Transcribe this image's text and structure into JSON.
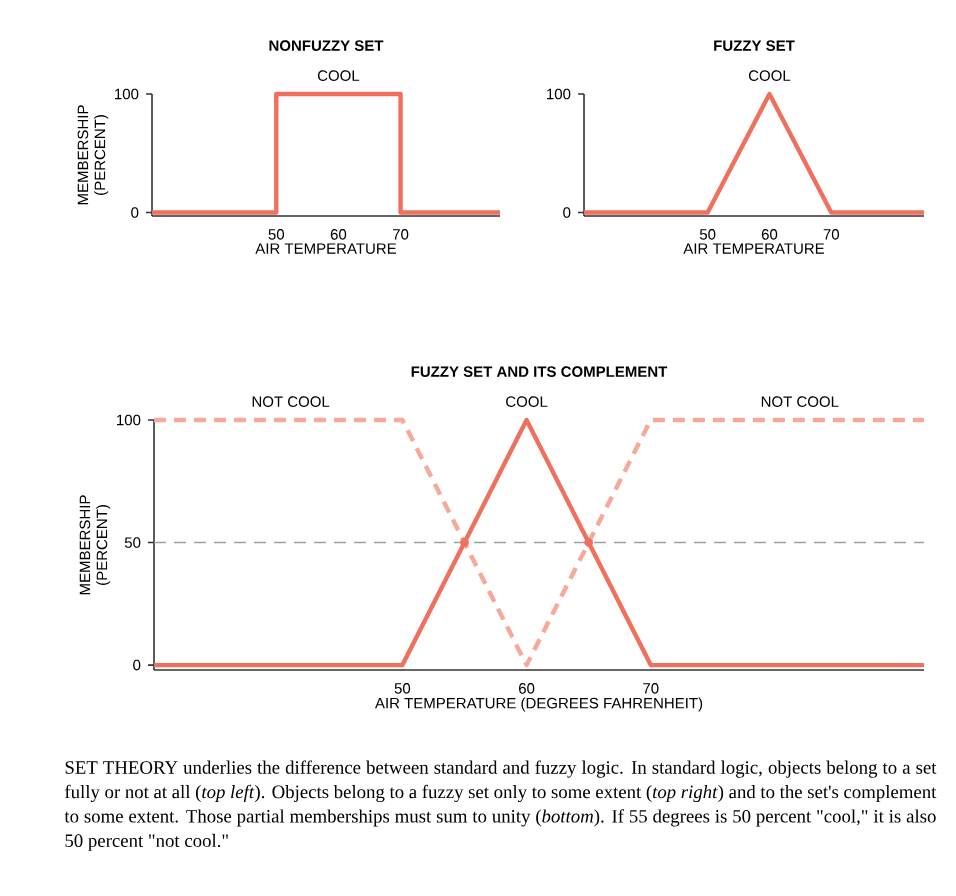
{
  "chart_data": [
    {
      "type": "line",
      "title": "NONFUZZY SET",
      "xlabel": "AIR TEMPERATURE",
      "ylabel": "MEMBERSHIP (PERCENT)",
      "xlim": [
        30,
        86
      ],
      "ylim": [
        -3,
        100
      ],
      "xticks": [
        50,
        60,
        70
      ],
      "yticks": [
        0,
        100
      ],
      "grid": false,
      "marker": "none",
      "series": [
        {
          "color": "#f07060",
          "x": [
            30,
            50,
            50,
            70,
            70,
            86
          ],
          "values": [
            0,
            0,
            100,
            100,
            0,
            0
          ]
        }
      ],
      "annotations": [
        {
          "text": "COOL",
          "x": 60,
          "y": 100
        }
      ]
    },
    {
      "type": "line",
      "title": "FUZZY SET",
      "xlabel": "AIR TEMPERATURE",
      "xlim": [
        30,
        85
      ],
      "ylim": [
        -3,
        100
      ],
      "xticks": [
        50,
        60,
        70
      ],
      "yticks": [
        0,
        100
      ],
      "grid": false,
      "marker": "none",
      "series": [
        {
          "color": "#f07060",
          "x": [
            30,
            50,
            60,
            70,
            85
          ],
          "values": [
            0,
            0,
            100,
            0,
            0
          ]
        }
      ],
      "annotations": [
        {
          "text": "COOL",
          "x": 60,
          "y": 100
        }
      ]
    },
    {
      "type": "line",
      "title": "FUZZY SET AND ITS COMPLEMENT",
      "xlabel": "AIR TEMPERATURE (DEGREES FAHRENHEIT)",
      "ylabel": "MEMBERSHIP (PERCENT)",
      "xlim": [
        30,
        92
      ],
      "ylim": [
        -2,
        100
      ],
      "xticks": [
        50,
        60,
        70
      ],
      "yticks": [
        0,
        50,
        100
      ],
      "grid": false,
      "marker": "none",
      "series": [
        {
          "color": "#f8a898",
          "line_style": "dashed",
          "x": [
            30,
            50,
            60,
            70,
            92
          ],
          "values": [
            100,
            100,
            0,
            100,
            100
          ]
        },
        {
          "color": "#f07060",
          "x": [
            30,
            50,
            60,
            70,
            92
          ],
          "values": [
            0,
            0,
            100,
            0,
            0
          ]
        },
        {
          "type": "scatter",
          "marker": "circle",
          "color": "#f07060",
          "x": [
            55,
            65
          ],
          "values": [
            50,
            50
          ]
        }
      ],
      "ref_lines": [
        {
          "axis": "y",
          "value": 50,
          "color": "#a0a0a0",
          "line_style": "dashed"
        }
      ],
      "annotations": [
        {
          "text": "NOT COOL",
          "x": 41,
          "y": 100
        },
        {
          "text": "COOL",
          "x": 60,
          "y": 100
        },
        {
          "text": "NOT COOL",
          "x": 82,
          "y": 100
        },
        "SET THEORY underlies the difference between standard and fuzzy logic. In standard logic, objects belong to a set fully or not at all (*top left*). Objects belong to a fuzzy set only to some extent (*top right*) and to the set's complement to some extent. Those partial memberships must sum to unity (*bottom*). If 55 degrees is 50 percent \"cool,\" it is also 50 percent \"not cool.\""
      ]
    }
  ]
}
